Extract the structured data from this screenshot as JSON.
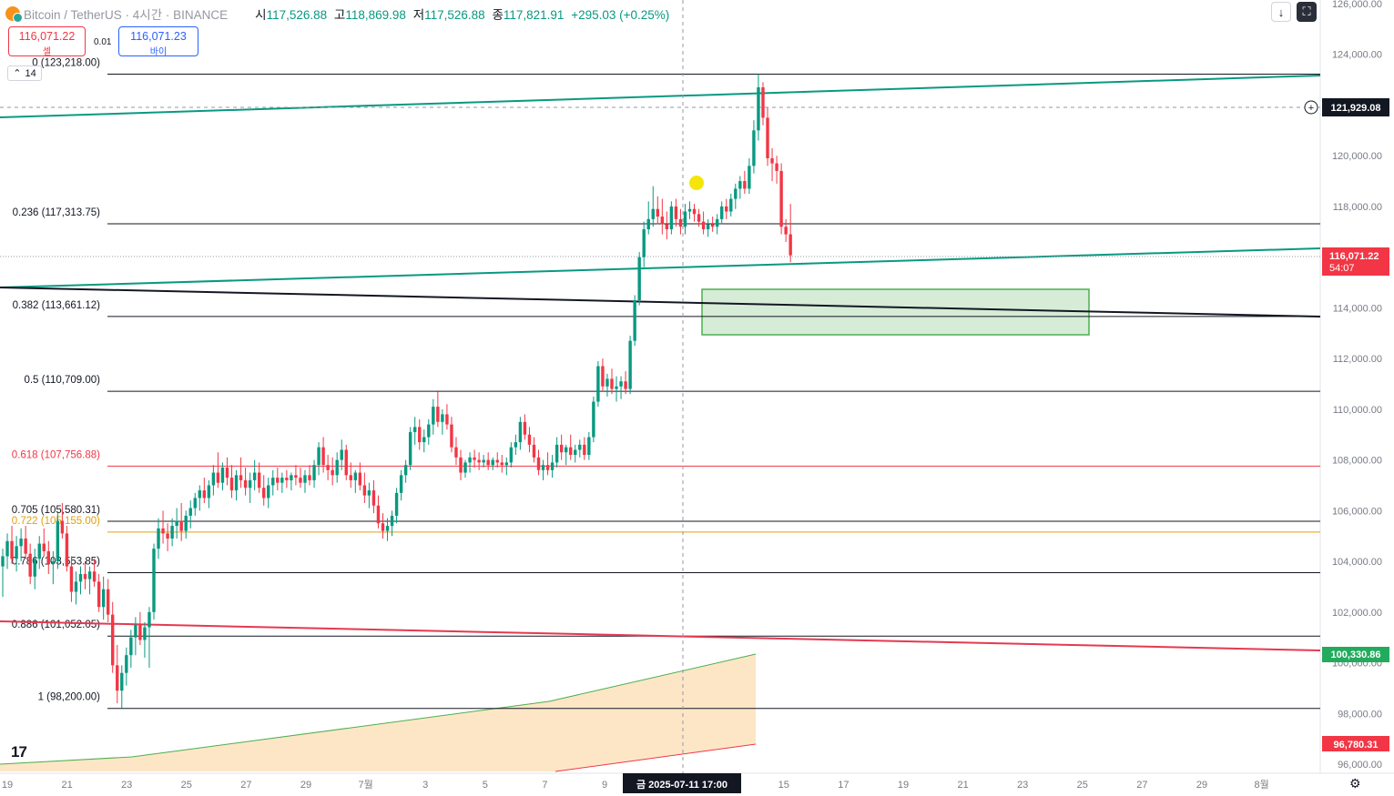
{
  "header": {
    "symbol": "Bitcoin / TetherUS · 4시간 · BINANCE",
    "open_label": "시",
    "open": "117,526.88",
    "high_label": "고",
    "high": "118,869.98",
    "low_label": "저",
    "low": "117,526.88",
    "close_label": "종",
    "close": "117,821.91",
    "change": "+295.03 (+0.25%)"
  },
  "trade": {
    "sell_price": "116,071.22",
    "sell_label": "셀",
    "spread": "0.01",
    "buy_price": "116,071.23",
    "buy_label": "바이"
  },
  "indicator_count": "14",
  "toolbar": {
    "download_icon": "download-arrow-icon",
    "fullscreen_icon": "fullscreen-icon"
  },
  "colors": {
    "up": "#089981",
    "down": "#f23645",
    "channel": "#089981",
    "zone": "#c8e6c9",
    "fib_618": "#f23645",
    "fib_722": "#e2a008"
  },
  "chart_data": {
    "type": "candlestick",
    "symbol": "BTCUSDT",
    "timeframe": "4시간",
    "price_axis": {
      "ylim": [
        96000,
        126000
      ],
      "ticks": [
        "126,000.00",
        "124,000.00",
        "122,000.00",
        "120,000.00",
        "118,000.00",
        "116,000.00",
        "114,000.00",
        "112,000.00",
        "110,000.00",
        "108,000.00",
        "106,000.00",
        "104,000.00",
        "102,000.00",
        "100,000.00",
        "98,000.00",
        "96,000.00"
      ]
    },
    "time_axis": {
      "ticks": [
        "19",
        "21",
        "23",
        "25",
        "27",
        "29",
        "7월",
        "3",
        "5",
        "7",
        "9",
        "11",
        "13",
        "15",
        "17",
        "19",
        "21",
        "23",
        "25",
        "27",
        "29",
        "8월"
      ],
      "crosshair_label": "금 2025-07-11  17:00"
    },
    "fib_levels": [
      {
        "label": "0 (123,218.00)",
        "value": 123218
      },
      {
        "label": "0.236 (117,313.75)",
        "value": 117313.75
      },
      {
        "label": "0.382 (113,661.12)",
        "value": 113661.12
      },
      {
        "label": "0.5 (110,709.00)",
        "value": 110709
      },
      {
        "label": "0.618 (107,756.88)",
        "value": 107756.88
      },
      {
        "label": "0.705 (105,580.31)",
        "value": 105580.31
      },
      {
        "label": "0.722 (105,155.00)",
        "value": 105155
      },
      {
        "label": "0.786 (103,553.85)",
        "value": 103553.85
      },
      {
        "label": "0.886 (101,052.05)",
        "value": 101052.05
      },
      {
        "label": "1 (98,200.00)",
        "value": 98200
      }
    ],
    "price_labels": {
      "crosshair": "121,929.08",
      "last_price": "116,071.22",
      "countdown": "54:07",
      "green_marker": "100,330.86",
      "red_marker": "96,780.31"
    },
    "candles": [
      [
        103800,
        104500,
        102600,
        104200
      ],
      [
        104200,
        105100,
        103700,
        104800
      ],
      [
        104800,
        105400,
        103900,
        104100
      ],
      [
        104100,
        105000,
        103600,
        104600
      ],
      [
        104600,
        105300,
        104000,
        104900
      ],
      [
        104900,
        105400,
        104100,
        104300
      ],
      [
        104300,
        104700,
        103100,
        103400
      ],
      [
        103400,
        104500,
        102900,
        104100
      ],
      [
        104100,
        105000,
        103700,
        104700
      ],
      [
        104700,
        105300,
        104200,
        104400
      ],
      [
        104400,
        104800,
        103500,
        103900
      ],
      [
        103900,
        104400,
        103100,
        104000
      ],
      [
        104000,
        105900,
        103700,
        105600
      ],
      [
        105600,
        106300,
        104900,
        105100
      ],
      [
        105100,
        105400,
        103600,
        103800
      ],
      [
        103800,
        104200,
        102400,
        102800
      ],
      [
        102800,
        103600,
        102300,
        103200
      ],
      [
        103200,
        103800,
        102700,
        103500
      ],
      [
        103500,
        104000,
        102900,
        103300
      ],
      [
        103300,
        103800,
        102700,
        103600
      ],
      [
        103600,
        104100,
        103000,
        103200
      ],
      [
        103200,
        103500,
        102000,
        102200
      ],
      [
        102200,
        103400,
        101700,
        102900
      ],
      [
        102900,
        103300,
        101600,
        101900
      ],
      [
        101900,
        102400,
        99600,
        99900
      ],
      [
        99900,
        100700,
        98400,
        98900
      ],
      [
        98900,
        99900,
        98200,
        99600
      ],
      [
        99600,
        100600,
        99100,
        100300
      ],
      [
        100300,
        101300,
        99800,
        101000
      ],
      [
        101000,
        101800,
        100300,
        101500
      ],
      [
        101500,
        102000,
        100700,
        100900
      ],
      [
        100900,
        101600,
        100200,
        101400
      ],
      [
        101400,
        102200,
        99800,
        102000
      ],
      [
        102000,
        104700,
        101700,
        104500
      ],
      [
        104500,
        105700,
        104100,
        105300
      ],
      [
        105300,
        106000,
        104700,
        105100
      ],
      [
        105100,
        105500,
        104400,
        104900
      ],
      [
        104900,
        105700,
        104600,
        105400
      ],
      [
        105400,
        106100,
        104900,
        105600
      ],
      [
        105600,
        106300,
        104800,
        105200
      ],
      [
        105200,
        106000,
        104900,
        105800
      ],
      [
        105800,
        106400,
        105300,
        106100
      ],
      [
        106100,
        106700,
        105800,
        106500
      ],
      [
        106500,
        107000,
        106000,
        106800
      ],
      [
        106800,
        107300,
        106300,
        106500
      ],
      [
        106500,
        107200,
        106100,
        107000
      ],
      [
        107000,
        107800,
        106600,
        107500
      ],
      [
        107500,
        108300,
        106900,
        107100
      ],
      [
        107100,
        107900,
        106800,
        107700
      ],
      [
        107700,
        108100,
        107000,
        107300
      ],
      [
        107300,
        107800,
        106500,
        106800
      ],
      [
        106800,
        107600,
        106400,
        107400
      ],
      [
        107400,
        108100,
        106900,
        107200
      ],
      [
        107200,
        107700,
        106600,
        106900
      ],
      [
        106900,
        107500,
        106300,
        107200
      ],
      [
        107200,
        108000,
        106800,
        107500
      ],
      [
        107500,
        107900,
        106700,
        106900
      ],
      [
        106900,
        107400,
        106200,
        106500
      ],
      [
        106500,
        107300,
        106100,
        107000
      ],
      [
        107000,
        107600,
        106600,
        107300
      ],
      [
        107300,
        107700,
        106800,
        107100
      ],
      [
        107100,
        107500,
        106700,
        107300
      ],
      [
        107300,
        107600,
        106900,
        107200
      ],
      [
        107200,
        107500,
        106800,
        107400
      ],
      [
        107400,
        107800,
        107000,
        107300
      ],
      [
        107300,
        107700,
        106900,
        107100
      ],
      [
        107100,
        107600,
        106700,
        107400
      ],
      [
        107400,
        107800,
        107000,
        107200
      ],
      [
        107200,
        108000,
        106900,
        107800
      ],
      [
        107800,
        108700,
        107400,
        108500
      ],
      [
        108500,
        108900,
        107500,
        107800
      ],
      [
        107800,
        108200,
        107200,
        107600
      ],
      [
        107600,
        108100,
        107000,
        107400
      ],
      [
        107400,
        108300,
        107100,
        108000
      ],
      [
        108000,
        108800,
        107600,
        108400
      ],
      [
        108400,
        108600,
        107200,
        107400
      ],
      [
        107400,
        107900,
        106900,
        107200
      ],
      [
        107200,
        107600,
        106700,
        107500
      ],
      [
        107500,
        107900,
        106800,
        107000
      ],
      [
        107000,
        107500,
        106300,
        106600
      ],
      [
        106600,
        107100,
        106100,
        106800
      ],
      [
        106800,
        107200,
        105900,
        106200
      ],
      [
        106200,
        106600,
        105300,
        105500
      ],
      [
        105500,
        105900,
        104900,
        105200
      ],
      [
        105200,
        105700,
        104800,
        105400
      ],
      [
        105400,
        106000,
        105000,
        105800
      ],
      [
        105800,
        106900,
        105500,
        106700
      ],
      [
        106700,
        107600,
        106400,
        107400
      ],
      [
        107400,
        108000,
        107100,
        107800
      ],
      [
        107800,
        109300,
        107600,
        109100
      ],
      [
        109100,
        109700,
        108600,
        109300
      ],
      [
        109300,
        109600,
        108400,
        108700
      ],
      [
        108700,
        109200,
        108300,
        108900
      ],
      [
        108900,
        109600,
        108600,
        109400
      ],
      [
        109400,
        110400,
        109000,
        110100
      ],
      [
        110100,
        110700,
        109300,
        109500
      ],
      [
        109500,
        110000,
        109000,
        109800
      ],
      [
        109800,
        110200,
        109200,
        109400
      ],
      [
        109400,
        109700,
        108300,
        108500
      ],
      [
        108500,
        108900,
        107800,
        108100
      ],
      [
        108100,
        108400,
        107200,
        107500
      ],
      [
        107500,
        108000,
        107300,
        107900
      ],
      [
        107900,
        108300,
        107500,
        108100
      ],
      [
        108100,
        108400,
        107700,
        108000
      ],
      [
        108000,
        108300,
        107600,
        107900
      ],
      [
        107900,
        108200,
        107700,
        108000
      ],
      [
        108000,
        108300,
        107600,
        107800
      ],
      [
        107800,
        108100,
        107600,
        108000
      ],
      [
        108000,
        108300,
        107700,
        107900
      ],
      [
        107900,
        108200,
        107500,
        107800
      ],
      [
        107800,
        108100,
        107400,
        107900
      ],
      [
        107900,
        108700,
        107700,
        108500
      ],
      [
        108500,
        109000,
        108200,
        108700
      ],
      [
        108700,
        109700,
        108400,
        109500
      ],
      [
        109500,
        109800,
        108800,
        109000
      ],
      [
        109000,
        109300,
        108300,
        108600
      ],
      [
        108600,
        108900,
        107900,
        108100
      ],
      [
        108100,
        108400,
        107400,
        107600
      ],
      [
        107600,
        108000,
        107200,
        107800
      ],
      [
        107800,
        108300,
        107400,
        107600
      ],
      [
        107600,
        108200,
        107300,
        107900
      ],
      [
        107900,
        108900,
        107700,
        108600
      ],
      [
        108600,
        109000,
        108000,
        108300
      ],
      [
        108300,
        108600,
        107800,
        108500
      ],
      [
        108500,
        109000,
        108000,
        108200
      ],
      [
        108200,
        108600,
        107900,
        108400
      ],
      [
        108400,
        108800,
        108100,
        108600
      ],
      [
        108600,
        108900,
        108000,
        108200
      ],
      [
        108200,
        109100,
        108000,
        108900
      ],
      [
        108900,
        110500,
        108700,
        110300
      ],
      [
        110300,
        111900,
        110100,
        111700
      ],
      [
        111700,
        112000,
        110700,
        110900
      ],
      [
        110900,
        111400,
        110500,
        111200
      ],
      [
        111200,
        111600,
        110600,
        110800
      ],
      [
        110800,
        111300,
        110300,
        110900
      ],
      [
        110900,
        111300,
        110400,
        111100
      ],
      [
        111100,
        111500,
        110600,
        110800
      ],
      [
        110800,
        112900,
        110600,
        112700
      ],
      [
        112700,
        114500,
        112500,
        114300
      ],
      [
        114300,
        116200,
        114100,
        116000
      ],
      [
        116000,
        117400,
        115600,
        117100
      ],
      [
        117100,
        118200,
        116900,
        117500
      ],
      [
        117500,
        118800,
        117200,
        117900
      ],
      [
        117900,
        118400,
        117300,
        117600
      ],
      [
        117600,
        118300,
        116900,
        117300
      ],
      [
        117300,
        117800,
        116700,
        117100
      ],
      [
        117100,
        118200,
        116900,
        118000
      ],
      [
        118000,
        118300,
        117200,
        117500
      ],
      [
        117500,
        117900,
        116900,
        117200
      ],
      [
        117200,
        118100,
        116900,
        117800
      ],
      [
        117800,
        118200,
        117500,
        117900
      ],
      [
        117900,
        118100,
        117400,
        117700
      ],
      [
        117700,
        117900,
        117200,
        117400
      ],
      [
        117400,
        117800,
        116900,
        117100
      ],
      [
        117100,
        117500,
        116800,
        117300
      ],
      [
        117300,
        117600,
        117000,
        117200
      ],
      [
        117200,
        117700,
        116900,
        117500
      ],
      [
        117500,
        118200,
        117300,
        118000
      ],
      [
        118000,
        118300,
        117500,
        117800
      ],
      [
        117800,
        118500,
        117600,
        118300
      ],
      [
        118300,
        118900,
        117900,
        118700
      ],
      [
        118700,
        119200,
        118300,
        119000
      ],
      [
        119000,
        119400,
        118500,
        118700
      ],
      [
        118700,
        119900,
        118500,
        119600
      ],
      [
        119600,
        121400,
        119300,
        121000
      ],
      [
        121000,
        123218,
        120600,
        122700
      ],
      [
        122700,
        122900,
        121200,
        121500
      ],
      [
        121500,
        121900,
        119600,
        119900
      ],
      [
        119900,
        120300,
        119000,
        119700
      ],
      [
        119700,
        120000,
        118900,
        119400
      ],
      [
        119400,
        119700,
        116900,
        117200
      ],
      [
        117200,
        117500,
        116600,
        116900
      ],
      [
        116900,
        118100,
        115800,
        116071
      ]
    ],
    "candles_format": "[open, high, low, close] per 4h bar",
    "overlays": {
      "demand_zone": {
        "low": 113000,
        "high": 114800,
        "label": ""
      },
      "teal_channel": "rising upper and lower trendlines",
      "black_trendline": "descending",
      "red_trendline": "descending",
      "projection_area": "shaded orange region"
    }
  }
}
